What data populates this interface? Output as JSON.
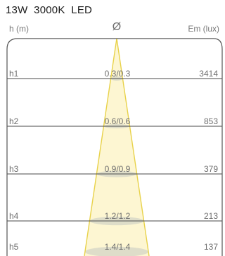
{
  "title": "13W  3000K  LED",
  "header": {
    "height_label": "h (m)",
    "diameter_symbol": "Ø",
    "illuminance_label": "Em (lux)"
  },
  "rows": [
    {
      "height": "h1",
      "diameter": "0.3/0.3",
      "em": "3414"
    },
    {
      "height": "h2",
      "diameter": "0.6/0.6",
      "em": "853"
    },
    {
      "height": "h3",
      "diameter": "0.9/0.9",
      "em": "379"
    },
    {
      "height": "h4",
      "diameter": "1.2/1.2",
      "em": "213"
    },
    {
      "height": "h5",
      "diameter": "1.4/1.4",
      "em": "137"
    }
  ],
  "colors": {
    "beam_fill": "#fdf6d2",
    "beam_edge": "#e8d24a",
    "spot_fill": "#d8d8c8",
    "row_line": "#4a4a4a",
    "frame": "#555555"
  }
}
